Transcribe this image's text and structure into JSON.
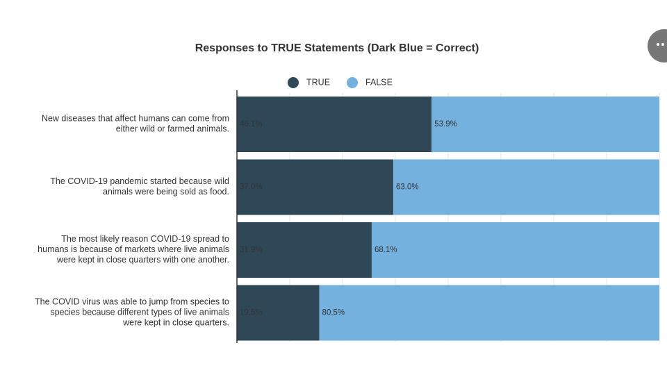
{
  "chart_data": {
    "type": "stacked_bar_horizontal",
    "title": "Responses to TRUE Statements (Dark Blue = Correct)",
    "categories": [
      "New diseases that affect humans can come from\neither wild or farmed animals.",
      "The COVID-19 pandemic started because wild\nanimals were being sold as food.",
      "The most likely reason COVID-19 spread to\nhumans is because of markets where live animals\nwere kept in close quarters with one another.",
      "The COVID virus was able to jump from species to\nspecies because different types of live animals\nwere kept in close quarters."
    ],
    "series": [
      {
        "name": "TRUE",
        "color": "#2f4858",
        "values": [
          46.1,
          37.0,
          31.9,
          19.5
        ],
        "value_labels": [
          "46.1%",
          "37.0%",
          "31.9%",
          "19.5%"
        ]
      },
      {
        "name": "FALSE",
        "color": "#74b1df",
        "values": [
          53.9,
          63.0,
          68.1,
          80.5
        ],
        "value_labels": [
          "53.9%",
          "63.0%",
          "68.1%",
          "80.5%"
        ]
      }
    ],
    "xlim": [
      0,
      100
    ],
    "xticks": [
      0,
      12.5,
      25,
      37.5,
      50,
      62.5,
      75,
      87.5,
      100
    ],
    "grid": true,
    "legend": "top"
  }
}
